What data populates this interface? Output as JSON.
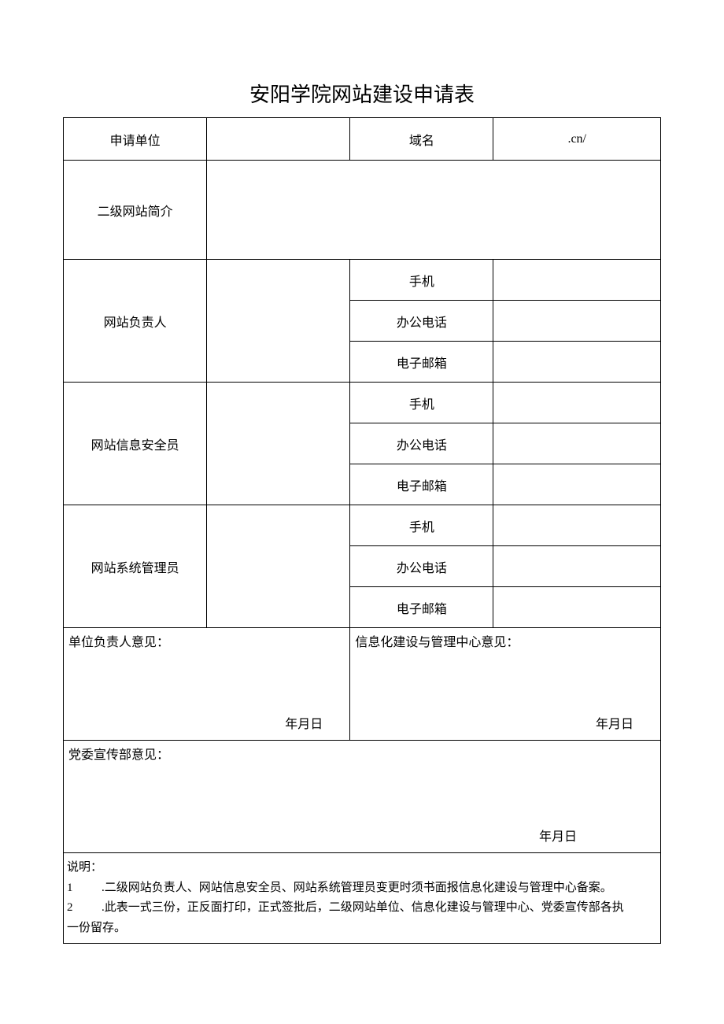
{
  "document": {
    "title": "安阳学院网站建设申请表",
    "background_color": "#ffffff",
    "border_color": "#000000",
    "text_color": "#000000",
    "title_fontsize": 26,
    "body_fontsize": 16,
    "note_fontsize": 15
  },
  "table": {
    "row1": {
      "applicant_unit_label": "申请单位",
      "applicant_unit_value": "",
      "domain_label": "域名",
      "domain_value": ".cn/"
    },
    "row2": {
      "intro_label": "二级网站简介",
      "intro_value": ""
    },
    "site_leader": {
      "label": "网站负责人",
      "name_value": "",
      "mobile_label": "手机",
      "mobile_value": "",
      "office_label": "办公电话",
      "office_value": "",
      "email_label": "电子邮箱",
      "email_value": ""
    },
    "security_officer": {
      "label": "网站信息安全员",
      "name_value": "",
      "mobile_label": "手机",
      "mobile_value": "",
      "office_label": "办公电话",
      "office_value": "",
      "email_label": "电子邮箱",
      "email_value": ""
    },
    "sys_admin": {
      "label": "网站系统管理员",
      "name_value": "",
      "mobile_label": "手机",
      "mobile_value": "",
      "office_label": "办公电话",
      "office_value": "",
      "email_label": "电子邮箱",
      "email_value": ""
    },
    "opinions": {
      "unit_leader_label": "单位负责人意见：",
      "unit_leader_date": "年月日",
      "info_center_label": "信息化建设与管理中心意见：",
      "info_center_date": "年月日",
      "propaganda_label": "党委宣传部意见：",
      "propaganda_date": "年月日"
    },
    "notes": {
      "header": "说明：",
      "item1_num": "1",
      "item1_text": ".二级网站负责人、网站信息安全员、网站系统管理员变更时须书面报信息化建设与管理中心备案。",
      "item2_num": "2",
      "item2_text": ".此表一式三份，正反面打印，正式签批后，二级网站单位、信息化建设与管理中心、党委宣传部各执",
      "item2_cont": "一份留存。"
    }
  }
}
